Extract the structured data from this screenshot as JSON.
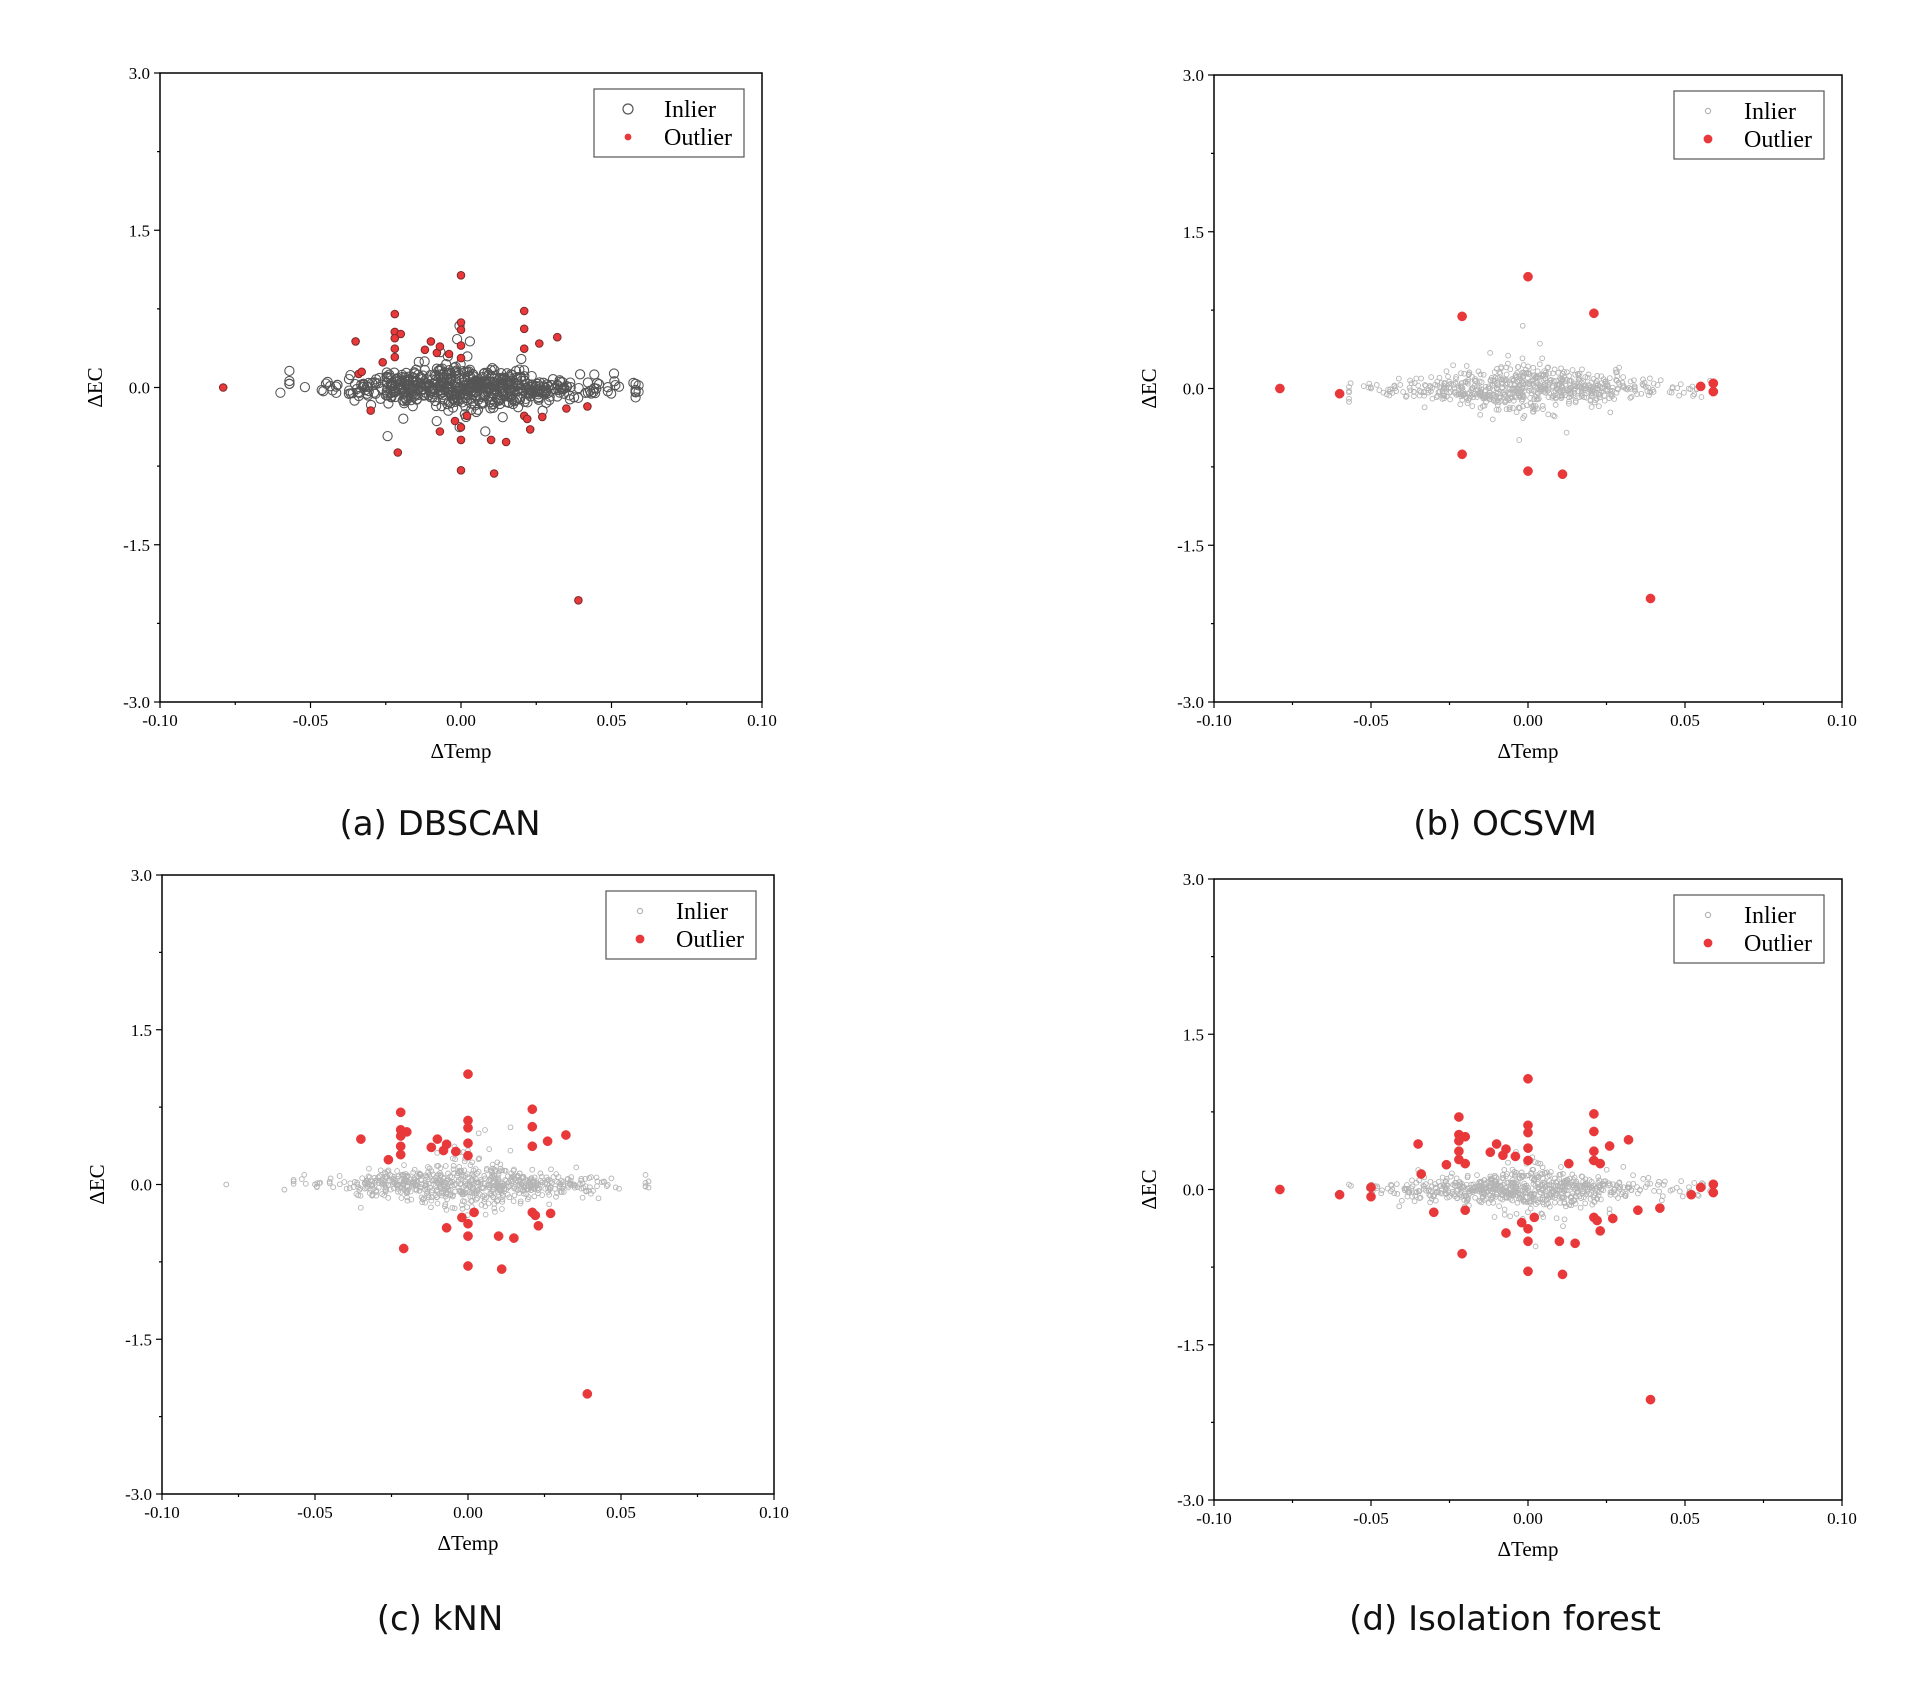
{
  "colors": {
    "outlier": "#e8383a",
    "inlier_dbscan": "#555555",
    "inlier_light": "#b4b4b4"
  },
  "chart_data": [
    {
      "id": "a",
      "type": "scatter",
      "caption": "(a) DBSCAN",
      "xlabel": "ΔTemp",
      "ylabel": "ΔEC",
      "xlim": [
        -0.1,
        0.1
      ],
      "ylim": [
        -3.0,
        3.0
      ],
      "xticks": [
        "-0.10",
        "-0.05",
        "0.00",
        "0.05",
        "0.10"
      ],
      "yticks": [
        "-3.0",
        "-1.5",
        "0.0",
        "1.5",
        "3.0"
      ],
      "legend": [
        "Inlier",
        "Outlier"
      ],
      "legend_position": "top-right",
      "inlier_style": "dark",
      "outliers": [
        [
          -0.079,
          0.0
        ],
        [
          -0.035,
          0.44
        ],
        [
          -0.034,
          0.13
        ],
        [
          -0.033,
          0.15
        ],
        [
          -0.03,
          -0.22
        ],
        [
          -0.026,
          0.24
        ],
        [
          -0.022,
          0.7
        ],
        [
          -0.022,
          0.53
        ],
        [
          -0.022,
          0.47
        ],
        [
          -0.022,
          0.37
        ],
        [
          -0.022,
          0.29
        ],
        [
          -0.021,
          -0.62
        ],
        [
          -0.02,
          0.51
        ],
        [
          -0.012,
          0.36
        ],
        [
          -0.01,
          0.44
        ],
        [
          -0.008,
          0.33
        ],
        [
          -0.007,
          0.39
        ],
        [
          -0.007,
          -0.42
        ],
        [
          -0.004,
          0.32
        ],
        [
          -0.002,
          -0.32
        ],
        [
          0.0,
          1.07
        ],
        [
          0.0,
          0.62
        ],
        [
          0.0,
          0.55
        ],
        [
          0.0,
          0.4
        ],
        [
          0.0,
          0.28
        ],
        [
          0.0,
          -0.38
        ],
        [
          0.0,
          -0.5
        ],
        [
          0.0,
          -0.79
        ],
        [
          0.002,
          -0.27
        ],
        [
          0.01,
          -0.5
        ],
        [
          0.011,
          -0.82
        ],
        [
          0.015,
          -0.52
        ],
        [
          0.021,
          0.73
        ],
        [
          0.021,
          0.56
        ],
        [
          0.021,
          0.37
        ],
        [
          0.021,
          -0.27
        ],
        [
          0.022,
          -0.3
        ],
        [
          0.023,
          -0.4
        ],
        [
          0.026,
          0.42
        ],
        [
          0.027,
          -0.28
        ],
        [
          0.032,
          0.48
        ],
        [
          0.035,
          -0.2
        ],
        [
          0.039,
          -2.03
        ],
        [
          0.042,
          -0.18
        ]
      ]
    },
    {
      "id": "b",
      "type": "scatter",
      "caption": "(b) OCSVM",
      "xlabel": "ΔTemp",
      "ylabel": "ΔEC",
      "xlim": [
        -0.1,
        0.1
      ],
      "ylim": [
        -3.0,
        3.0
      ],
      "xticks": [
        "-0.10",
        "-0.05",
        "0.00",
        "0.05",
        "0.10"
      ],
      "yticks": [
        "-3.0",
        "-1.5",
        "0.0",
        "1.5",
        "3.0"
      ],
      "legend": [
        "Inlier",
        "Outlier"
      ],
      "legend_position": "top-right",
      "inlier_style": "light",
      "outliers": [
        [
          -0.079,
          0.0
        ],
        [
          -0.06,
          -0.05
        ],
        [
          -0.021,
          0.69
        ],
        [
          -0.021,
          -0.63
        ],
        [
          0.0,
          1.07
        ],
        [
          0.0,
          -0.79
        ],
        [
          0.011,
          -0.82
        ],
        [
          0.021,
          0.72
        ],
        [
          0.039,
          -2.01
        ],
        [
          0.055,
          0.02
        ],
        [
          0.059,
          0.05
        ],
        [
          0.059,
          -0.03
        ]
      ]
    },
    {
      "id": "c",
      "type": "scatter",
      "caption": "(c) kNN",
      "xlabel": "ΔTemp",
      "ylabel": "ΔEC",
      "xlim": [
        -0.1,
        0.1
      ],
      "ylim": [
        -3.0,
        3.0
      ],
      "xticks": [
        "-0.10",
        "-0.05",
        "0.00",
        "0.05",
        "0.10"
      ],
      "yticks": [
        "-3.0",
        "-1.5",
        "0.0",
        "1.5",
        "3.0"
      ],
      "legend": [
        "Inlier",
        "Outlier"
      ],
      "legend_position": "top-right",
      "inlier_style": "light",
      "outliers": [
        [
          -0.035,
          0.44
        ],
        [
          -0.026,
          0.24
        ],
        [
          -0.022,
          0.7
        ],
        [
          -0.022,
          0.53
        ],
        [
          -0.022,
          0.47
        ],
        [
          -0.022,
          0.37
        ],
        [
          -0.022,
          0.29
        ],
        [
          -0.021,
          -0.62
        ],
        [
          -0.02,
          0.51
        ],
        [
          -0.012,
          0.36
        ],
        [
          -0.01,
          0.44
        ],
        [
          -0.008,
          0.33
        ],
        [
          -0.007,
          0.39
        ],
        [
          -0.007,
          -0.42
        ],
        [
          -0.004,
          0.32
        ],
        [
          -0.002,
          -0.32
        ],
        [
          0.0,
          1.07
        ],
        [
          0.0,
          0.62
        ],
        [
          0.0,
          0.55
        ],
        [
          0.0,
          0.4
        ],
        [
          0.0,
          0.28
        ],
        [
          0.0,
          -0.38
        ],
        [
          0.0,
          -0.5
        ],
        [
          0.0,
          -0.79
        ],
        [
          0.002,
          -0.27
        ],
        [
          0.01,
          -0.5
        ],
        [
          0.011,
          -0.82
        ],
        [
          0.015,
          -0.52
        ],
        [
          0.021,
          0.73
        ],
        [
          0.021,
          0.56
        ],
        [
          0.021,
          0.37
        ],
        [
          0.021,
          -0.27
        ],
        [
          0.022,
          -0.3
        ],
        [
          0.023,
          -0.4
        ],
        [
          0.026,
          0.42
        ],
        [
          0.027,
          -0.28
        ],
        [
          0.032,
          0.48
        ],
        [
          0.039,
          -2.03
        ]
      ]
    },
    {
      "id": "d",
      "type": "scatter",
      "caption": "(d) Isolation forest",
      "xlabel": "ΔTemp",
      "ylabel": "ΔEC",
      "xlim": [
        -0.1,
        0.1
      ],
      "ylim": [
        -3.0,
        3.0
      ],
      "xticks": [
        "-0.10",
        "-0.05",
        "0.00",
        "0.05",
        "0.10"
      ],
      "yticks": [
        "-3.0",
        "-1.5",
        "0.0",
        "1.5",
        "3.0"
      ],
      "legend": [
        "Inlier",
        "Outlier"
      ],
      "legend_position": "top-right",
      "inlier_style": "light",
      "outliers": [
        [
          -0.079,
          0.0
        ],
        [
          -0.06,
          -0.05
        ],
        [
          -0.05,
          0.02
        ],
        [
          -0.05,
          -0.07
        ],
        [
          -0.035,
          0.44
        ],
        [
          -0.034,
          0.15
        ],
        [
          -0.03,
          -0.22
        ],
        [
          -0.026,
          0.24
        ],
        [
          -0.022,
          0.7
        ],
        [
          -0.022,
          0.53
        ],
        [
          -0.022,
          0.47
        ],
        [
          -0.022,
          0.37
        ],
        [
          -0.022,
          0.29
        ],
        [
          -0.021,
          -0.62
        ],
        [
          -0.02,
          0.51
        ],
        [
          -0.02,
          0.25
        ],
        [
          -0.02,
          -0.2
        ],
        [
          -0.012,
          0.36
        ],
        [
          -0.01,
          0.44
        ],
        [
          -0.008,
          0.33
        ],
        [
          -0.007,
          0.39
        ],
        [
          -0.007,
          -0.42
        ],
        [
          -0.004,
          0.32
        ],
        [
          -0.002,
          -0.32
        ],
        [
          0.0,
          1.07
        ],
        [
          0.0,
          0.62
        ],
        [
          0.0,
          0.55
        ],
        [
          0.0,
          0.4
        ],
        [
          0.0,
          0.28
        ],
        [
          0.0,
          -0.38
        ],
        [
          0.0,
          -0.5
        ],
        [
          0.0,
          -0.79
        ],
        [
          0.002,
          -0.27
        ],
        [
          0.01,
          -0.5
        ],
        [
          0.011,
          -0.82
        ],
        [
          0.013,
          0.25
        ],
        [
          0.015,
          -0.52
        ],
        [
          0.021,
          0.73
        ],
        [
          0.021,
          0.56
        ],
        [
          0.021,
          0.37
        ],
        [
          0.021,
          0.28
        ],
        [
          0.021,
          -0.27
        ],
        [
          0.022,
          -0.3
        ],
        [
          0.023,
          0.25
        ],
        [
          0.023,
          -0.4
        ],
        [
          0.026,
          0.42
        ],
        [
          0.027,
          -0.28
        ],
        [
          0.032,
          0.48
        ],
        [
          0.035,
          -0.2
        ],
        [
          0.039,
          -2.03
        ],
        [
          0.042,
          -0.18
        ],
        [
          0.052,
          -0.05
        ],
        [
          0.055,
          0.02
        ],
        [
          0.059,
          0.05
        ],
        [
          0.059,
          -0.03
        ]
      ]
    }
  ]
}
